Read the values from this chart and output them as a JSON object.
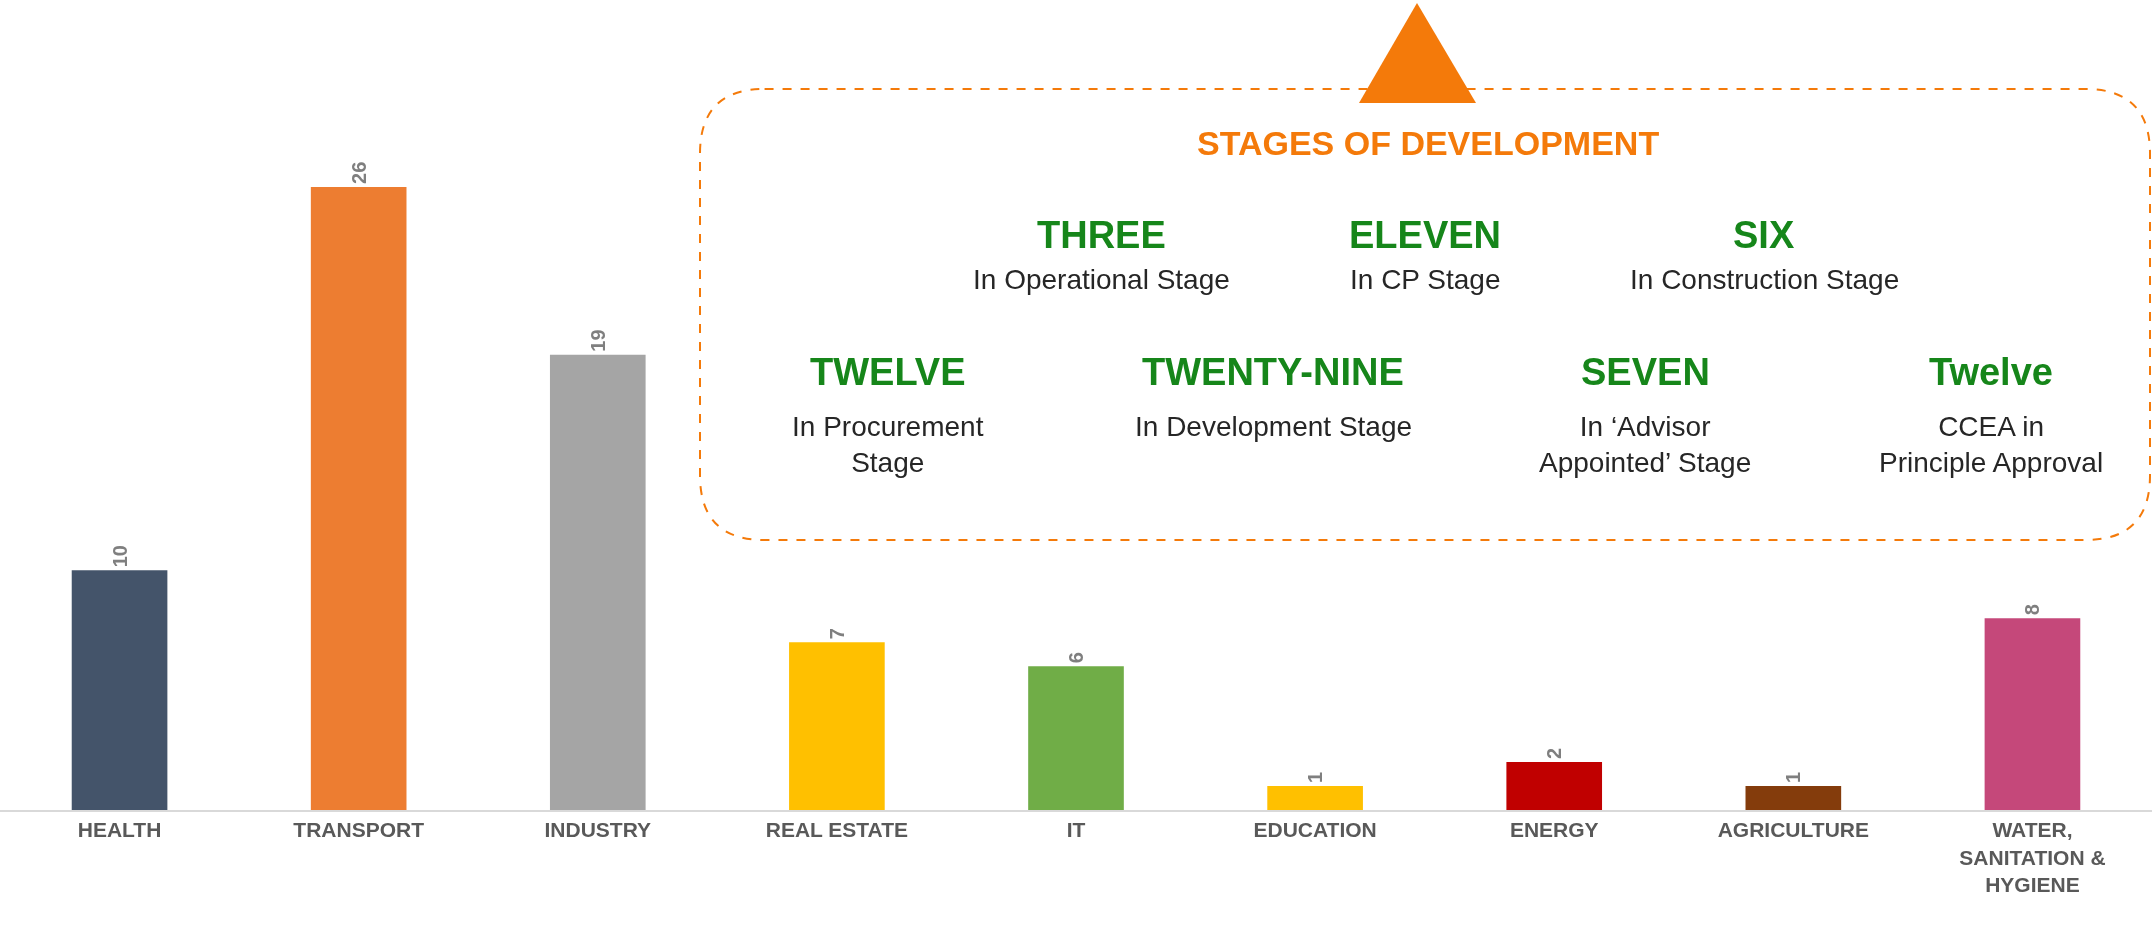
{
  "chart_data": {
    "type": "bar",
    "categories": [
      "HEALTH",
      "TRANSPORT",
      "INDUSTRY",
      "REAL ESTATE",
      "IT",
      "EDUCATION",
      "ENERGY",
      "AGRICULTURE",
      "WATER,\nSANITATION &\nHYGIENE"
    ],
    "values": [
      10,
      26,
      19,
      7,
      6,
      1,
      2,
      1,
      8
    ],
    "colors": [
      "#44546a",
      "#ed7d31",
      "#a5a5a5",
      "#ffc000",
      "#70ad47",
      "#ffc000",
      "#c00000",
      "#843c0c",
      "#c5487a"
    ],
    "data_labels": true,
    "annotations": [
      "STAGES OF DEVELOPMENT",
      "THREE",
      "In Operational Stage",
      "ELEVEN",
      "In CP Stage",
      "SIX",
      "In Construction Stage",
      "TWELVE",
      "In Procurement\nStage",
      "TWENTY-NINE",
      "In Development Stage",
      "SEVEN",
      "In ‘Advisor\nAppointed’ Stage",
      "Twelve",
      "CCEA in\nPrinciple Approval"
    ]
  }
}
